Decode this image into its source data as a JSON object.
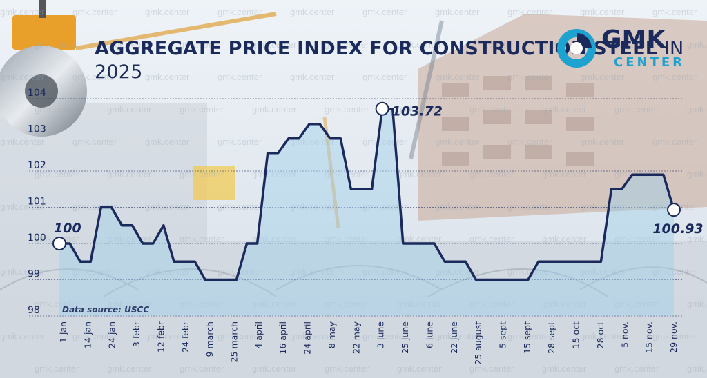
{
  "title_bold": "AGGREGATE PRICE INDEX FOR CONSTRUCTION STEEL",
  "title_light": "IN 2025",
  "source": "Data source: USCC",
  "watermark": "gmk.center",
  "logo": {
    "name": "GMK",
    "sub": "CENTER"
  },
  "colors": {
    "line": "#1b2a5c",
    "fill": "#9fd0ea",
    "title": "#1b2a5c",
    "accent": "#1ea2d0"
  },
  "chart_data": {
    "type": "area",
    "title": "AGGREGATE PRICE INDEX FOR CONSTRUCTION STEEL IN 2025",
    "ylim": [
      98,
      104
    ],
    "yticks": [
      98,
      99,
      100,
      101,
      102,
      103,
      104
    ],
    "grid": true,
    "xtick_labels": [
      "1 jan",
      "14 jan",
      "24 jan",
      "3 febr",
      "12 febr",
      "24 febr",
      "9 march",
      "25 march",
      "4 april",
      "16 april",
      "24 april",
      "8 may",
      "22 may",
      "3 june",
      "25 june",
      "6 june",
      "22 june",
      "25 august",
      "5 sept",
      "15 sept",
      "28 sept",
      "15 oct",
      "28 oct",
      "5 nov.",
      "15 nov.",
      "29 nov."
    ],
    "series": [
      {
        "values": [
          100,
          100,
          99.5,
          99.5,
          101,
          101,
          100.5,
          100.5,
          100,
          100,
          100.5,
          99.5,
          99.5,
          99.5,
          99,
          99,
          99,
          99,
          100,
          100,
          102.5,
          102.5,
          102.9,
          102.9,
          103.3,
          103.3,
          102.9,
          102.9,
          101.5,
          101.5,
          101.5,
          103.72,
          103.72,
          100,
          100,
          100,
          100,
          99.5,
          99.5,
          99.5,
          99,
          99,
          99,
          99,
          99,
          99,
          99.5,
          99.5,
          99.5,
          99.5,
          99.5,
          99.5,
          99.5,
          101.5,
          101.5,
          101.9,
          101.9,
          101.9,
          101.9,
          100.93
        ]
      }
    ],
    "annotations": [
      {
        "label": "100",
        "index": 0,
        "value": 100
      },
      {
        "label": "103.72",
        "index": 31,
        "value": 103.72
      },
      {
        "label": "100.93",
        "index": 59,
        "value": 100.93
      }
    ]
  }
}
